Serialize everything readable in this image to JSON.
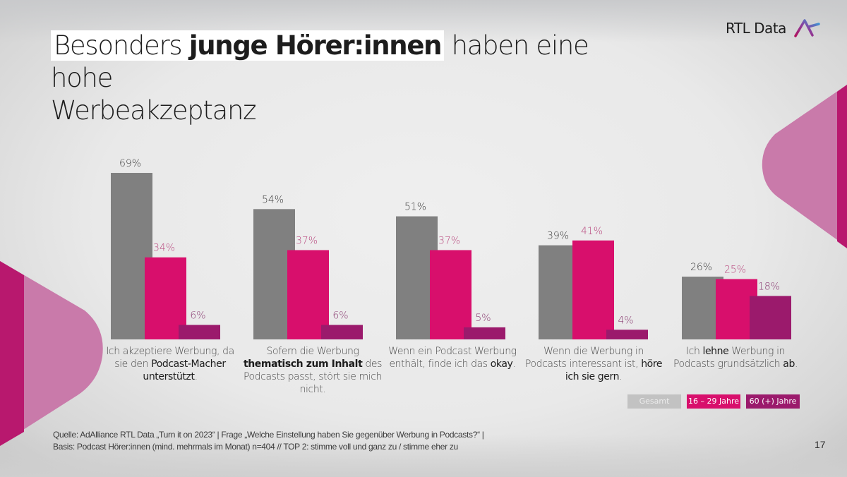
{
  "slide": {
    "title_part1": "Besonders ",
    "title_bold": "junge Hörer:innen",
    "title_part2": " haben eine hohe",
    "title_line2": "Werbeakzeptanz",
    "logo_text": "RTL Data",
    "page_number": "17",
    "footer_line1": "Quelle: AdAlliance RTL Data „Turn it on 2023“ | Frage „Welche Einstellung haben Sie gegenüber Werbung in Podcasts?“ |",
    "footer_line2": "Basis: Podcast Hörer:innen (mind. mehrmals im Monat) n=404 // TOP 2: stimme voll und ganz zu / stimme eher zu"
  },
  "colors": {
    "gesamt": "#808080",
    "jung": "#d80f6c",
    "alt": "#9b1a6c",
    "legend_gesamt": "#c2c2c2",
    "label_gesamt": "#3c3c3c",
    "label_jung": "#b8477e",
    "label_alt": "#8a3c72"
  },
  "category_texts": [
    [
      {
        "t": "Ich akzeptiere Werbung, da sie den "
      },
      {
        "t": "Podcast-Macher unterstützt",
        "b": 1
      },
      {
        "t": "."
      }
    ],
    [
      {
        "t": "Sofern die Werbung "
      },
      {
        "t": "thematisch zum Inhalt",
        "b": 2
      },
      {
        "t": " des Podcasts passt, stört sie mich nicht."
      }
    ],
    [
      {
        "t": "Wenn ein Podcast Werbung enthält, finde ich das "
      },
      {
        "t": "okay",
        "b": 1
      },
      {
        "t": "."
      }
    ],
    [
      {
        "t": "Wenn die Werbung in Podcasts interessant ist, "
      },
      {
        "t": "höre ich sie gern",
        "b": 1
      },
      {
        "t": "."
      }
    ],
    [
      {
        "t": "Ich "
      },
      {
        "t": "lehne",
        "b": 1
      },
      {
        "t": " Werbung in Podcasts grundsätzlich "
      },
      {
        "t": "ab",
        "b": 1
      },
      {
        "t": "."
      }
    ]
  ],
  "chart_data": {
    "type": "bar",
    "title": "Besonders junge Hörer:innen haben eine hohe Werbeakzeptanz",
    "xlabel": "",
    "ylabel": "",
    "unit": "%",
    "ylim": [
      0,
      75
    ],
    "grid": false,
    "legend_position": "bottom-right",
    "categories": [
      "Ich akzeptiere Werbung, da sie den Podcast-Macher unterstützt.",
      "Sofern die Werbung thematisch zum Inhalt des Podcasts passt, stört sie mich nicht.",
      "Wenn ein Podcast Werbung enthält, finde ich das okay.",
      "Wenn die Werbung in Podcasts interessant ist, höre ich sie gern.",
      "Ich lehne Werbung in Podcasts grundsätzlich ab."
    ],
    "series": [
      {
        "name": "Gesamt",
        "key": "gesamt",
        "values": [
          69,
          54,
          51,
          39,
          26
        ]
      },
      {
        "name": "16 – 29 Jahre",
        "key": "jung",
        "values": [
          34,
          37,
          37,
          41,
          25
        ]
      },
      {
        "name": "60 (+) Jahre",
        "key": "alt",
        "values": [
          6,
          6,
          5,
          4,
          18
        ]
      }
    ]
  }
}
